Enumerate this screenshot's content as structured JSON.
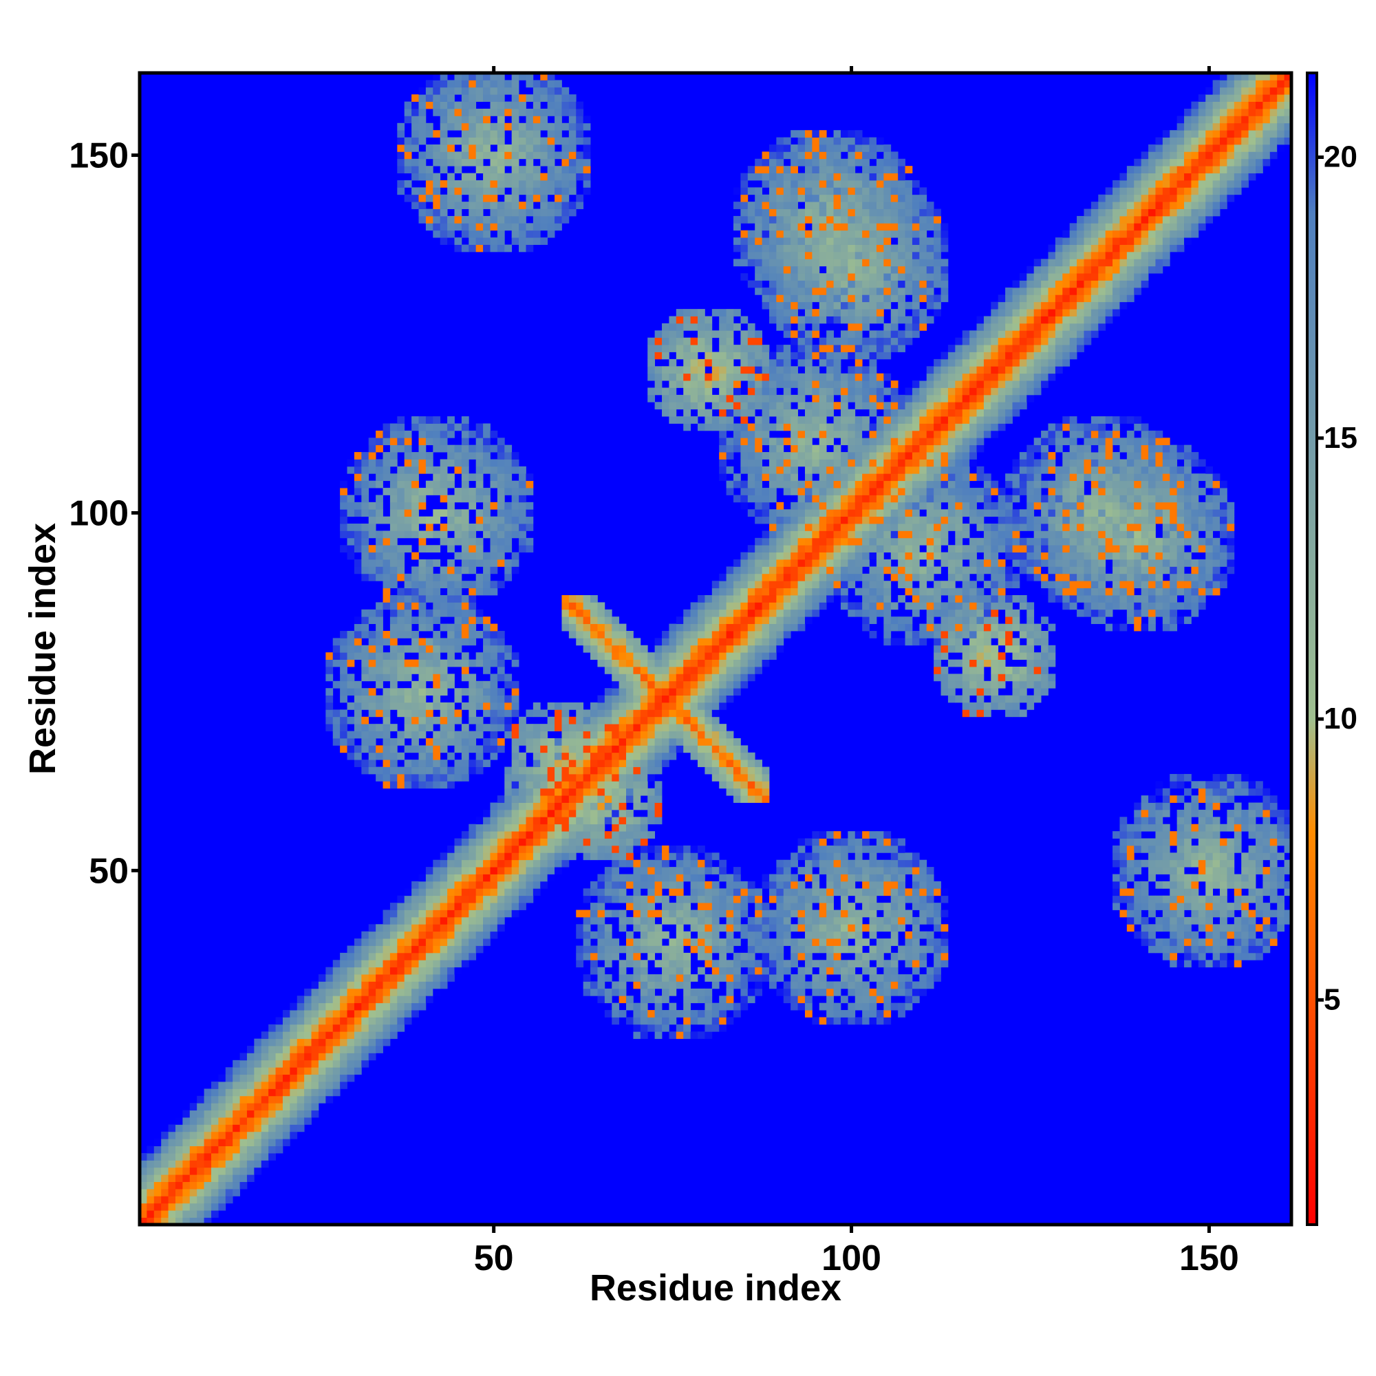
{
  "chart_data": {
    "type": "heatmap",
    "title": "",
    "xlabel": "Residue index",
    "ylabel": "Residue index",
    "xlim": [
      1,
      161
    ],
    "ylim": [
      1,
      161
    ],
    "x_ticks": [
      50,
      100,
      150
    ],
    "y_ticks": [
      50,
      100,
      150
    ],
    "colorbar": {
      "range": [
        1,
        21.5
      ],
      "ticks": [
        5,
        10,
        15,
        20
      ],
      "colors": [
        "#ff0000",
        "#ff8c00",
        "#9fbf8f",
        "#4f7fbf",
        "#0000ff"
      ],
      "stops": [
        1,
        8,
        10,
        19,
        21.5
      ]
    },
    "grid": false,
    "matrix_symmetric": true,
    "features": {
      "main_diagonal": [
        1,
        161
      ],
      "antidiagonal_hairpin": {
        "center": [
          74,
          74
        ],
        "span": [
          60,
          88
        ]
      },
      "contact_clusters": [
        {
          "x": 50,
          "y": 150,
          "level": "moderate"
        },
        {
          "x": 97,
          "y": 140,
          "level": "moderate"
        },
        {
          "x": 42,
          "y": 100,
          "level": "moderate"
        },
        {
          "x": 100,
          "y": 42,
          "level": "moderate"
        },
        {
          "x": 150,
          "y": 50,
          "level": "moderate"
        },
        {
          "x": 140,
          "y": 97,
          "level": "moderate"
        },
        {
          "x": 80,
          "y": 120,
          "level": "close"
        },
        {
          "x": 120,
          "y": 80,
          "level": "close"
        },
        {
          "x": 110,
          "y": 95,
          "level": "moderate"
        },
        {
          "x": 95,
          "y": 110,
          "level": "moderate"
        },
        {
          "x": 135,
          "y": 100,
          "level": "moderate"
        },
        {
          "x": 100,
          "y": 135,
          "level": "moderate"
        },
        {
          "x": 75,
          "y": 40,
          "level": "moderate"
        },
        {
          "x": 40,
          "y": 75,
          "level": "moderate"
        },
        {
          "x": 60,
          "y": 65,
          "level": "close"
        },
        {
          "x": 65,
          "y": 60,
          "level": "close"
        }
      ],
      "background_value": 21.5
    }
  }
}
